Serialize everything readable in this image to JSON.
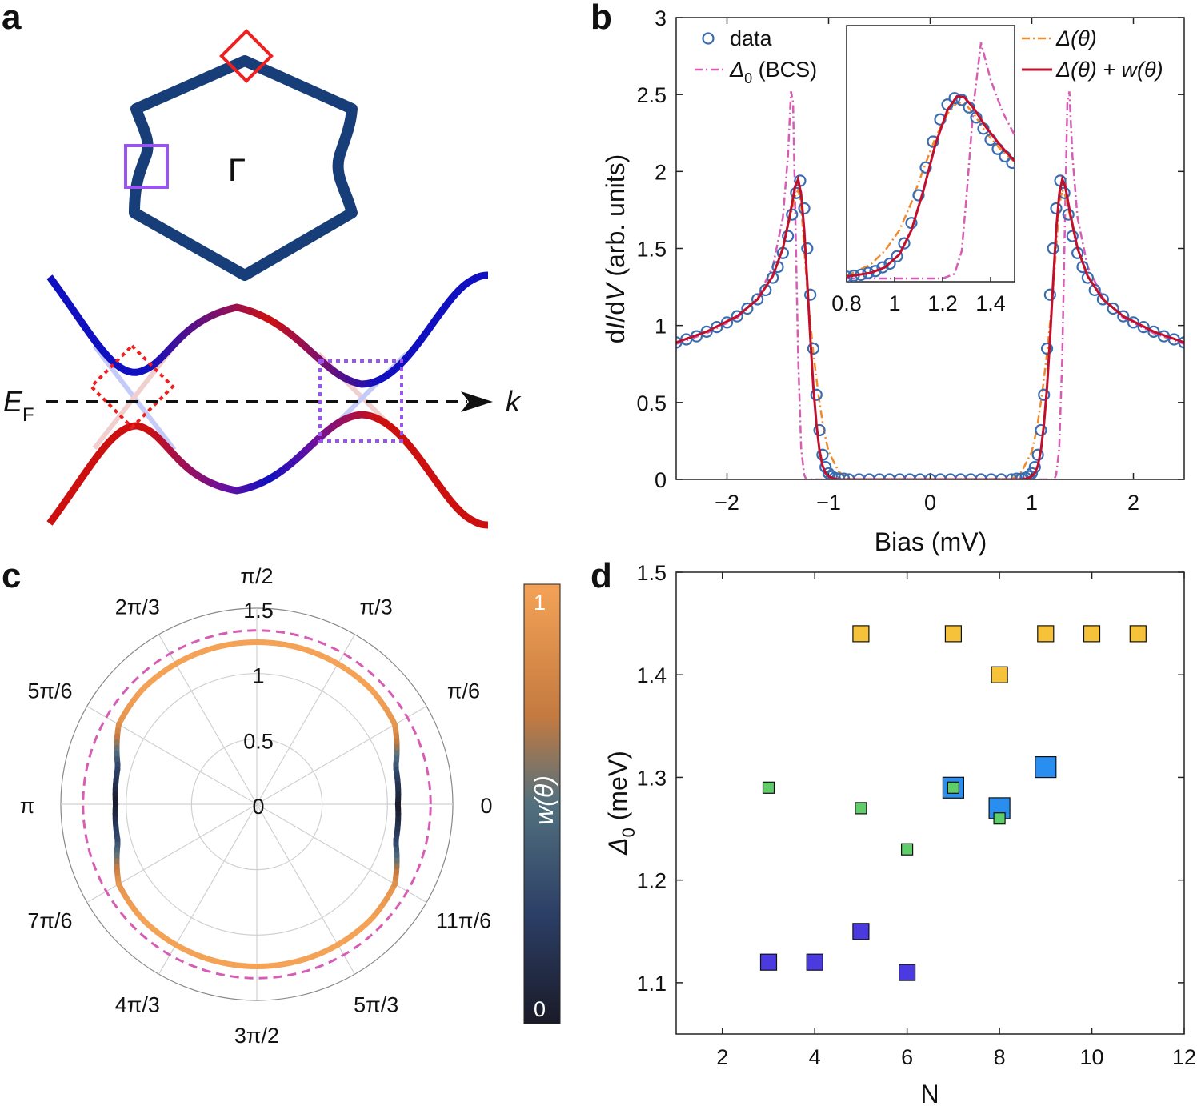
{
  "colors": {
    "data_marker": "#3a6db0",
    "bcs": "#d65cb4",
    "delta_theta": "#f08a2c",
    "fit": "#c0102e",
    "band_blue": "#1010c0",
    "band_red": "#cc1010",
    "hexagon": "#173e78",
    "red_box": "#ee2020",
    "purple_box": "#9a55f0",
    "sq_yellow": "#f6c23a",
    "sq_lightblue": "#2a8ef0",
    "sq_blue": "#4a3ae0",
    "sq_green": "#5fce6a"
  },
  "panel_a": {
    "letter": "a",
    "gamma_label": "Γ",
    "ef_label_main": "E",
    "ef_label_sub": "F",
    "k_label": "k"
  },
  "panel_b": {
    "letter": "b",
    "xlabel": "Bias (mV)",
    "ylabel": "dI/dV (arb. units)",
    "ylabel_parts": [
      "d",
      "I",
      "/d",
      "V",
      " (arb. units)"
    ],
    "legend": {
      "data": "data",
      "bcs_symbol": "Δ",
      "bcs_sub": "0",
      "bcs_rest": " (BCS)",
      "delta_theta": "Δ(θ)",
      "fit": "Δ(θ) + w(θ)"
    }
  },
  "panel_c": {
    "letter": "c",
    "colorbar_label": "w(θ)",
    "colorbar_ticks": [
      "1",
      "0"
    ],
    "angle_labels": [
      "0",
      "π/6",
      "π/3",
      "π/2",
      "2π/3",
      "5π/6",
      "π",
      "7π/6",
      "4π/3",
      "3π/2",
      "5π/3",
      "11π/6"
    ],
    "radial_labels": [
      "0",
      "0.5",
      "1",
      "1.5"
    ]
  },
  "panel_d": {
    "letter": "d",
    "xlabel": "N",
    "ylabel_symbol": "Δ",
    "ylabel_sub": "0",
    "ylabel_rest": " (meV)"
  },
  "chart_data": [
    {
      "type": "line",
      "title": "",
      "xlabel": "Bias (mV)",
      "ylabel": "dI/dV (arb. units)",
      "xlim": [
        -2.5,
        2.5
      ],
      "ylim": [
        0,
        3
      ],
      "xticks": [
        -2,
        -1,
        0,
        1,
        2
      ],
      "yticks": [
        0,
        0.5,
        1,
        1.5,
        2,
        2.5,
        3
      ],
      "series": [
        {
          "name": "data",
          "style": "circles",
          "x": [
            -2.5,
            -2.4,
            -2.3,
            -2.2,
            -2.1,
            -2.0,
            -1.9,
            -1.8,
            -1.7,
            -1.62,
            -1.55,
            -1.5,
            -1.45,
            -1.4,
            -1.36,
            -1.32,
            -1.28,
            -1.24,
            -1.21,
            -1.18,
            -1.15,
            -1.12,
            -1.09,
            -1.06,
            -1.03,
            -1.0,
            -0.97,
            -0.94,
            -0.9,
            -0.85,
            -0.8,
            -0.7,
            -0.6,
            -0.5,
            -0.4,
            -0.3,
            -0.2,
            -0.1,
            0.0,
            0.1,
            0.2,
            0.3,
            0.4,
            0.5,
            0.6,
            0.7,
            0.8,
            0.85,
            0.9,
            0.94,
            0.97,
            1.0,
            1.03,
            1.06,
            1.09,
            1.12,
            1.15,
            1.18,
            1.21,
            1.24,
            1.28,
            1.32,
            1.36,
            1.4,
            1.45,
            1.5,
            1.55,
            1.62,
            1.7,
            1.8,
            1.9,
            2.0,
            2.1,
            2.2,
            2.3,
            2.4,
            2.5
          ],
          "y": [
            0.89,
            0.91,
            0.93,
            0.96,
            0.99,
            1.02,
            1.06,
            1.11,
            1.17,
            1.23,
            1.31,
            1.38,
            1.47,
            1.58,
            1.72,
            1.86,
            1.94,
            1.76,
            1.5,
            1.2,
            0.85,
            0.55,
            0.32,
            0.16,
            0.08,
            0.04,
            0.02,
            0.01,
            0.005,
            0.005,
            0.0,
            0.0,
            0.0,
            0.0,
            0.0,
            0.0,
            0.0,
            0.0,
            0.0,
            0.0,
            0.0,
            0.0,
            0.0,
            0.0,
            0.0,
            0.0,
            0.0,
            0.005,
            0.005,
            0.01,
            0.02,
            0.04,
            0.08,
            0.16,
            0.32,
            0.55,
            0.85,
            1.2,
            1.5,
            1.76,
            1.94,
            1.86,
            1.72,
            1.58,
            1.47,
            1.38,
            1.31,
            1.23,
            1.17,
            1.11,
            1.06,
            1.02,
            0.99,
            0.96,
            0.93,
            0.91,
            0.89
          ]
        },
        {
          "name": "Δ0 (BCS)",
          "style": "dashdot",
          "x": [
            -2.5,
            -2.2,
            -1.9,
            -1.7,
            -1.55,
            -1.45,
            -1.4,
            -1.37,
            -1.35,
            -1.33,
            -1.3,
            -1.27,
            -1.24,
            -1.22,
            -1.2,
            -0.8,
            0.0,
            0.8,
            1.2,
            1.22,
            1.24,
            1.27,
            1.3,
            1.33,
            1.35,
            1.37,
            1.4,
            1.45,
            1.55,
            1.7,
            1.9,
            2.2,
            2.5
          ],
          "y": [
            0.88,
            0.95,
            1.05,
            1.18,
            1.38,
            1.7,
            2.1,
            2.52,
            2.45,
            1.8,
            0.8,
            0.2,
            0.03,
            0.0,
            0.0,
            0.0,
            0.0,
            0.0,
            0.0,
            0.0,
            0.03,
            0.2,
            0.8,
            1.8,
            2.45,
            2.52,
            2.1,
            1.7,
            1.38,
            1.18,
            1.05,
            0.95,
            0.88
          ]
        },
        {
          "name": "Δ(θ)",
          "style": "dashdot",
          "x": [
            -2.5,
            -2.2,
            -1.9,
            -1.7,
            -1.55,
            -1.45,
            -1.38,
            -1.33,
            -1.3,
            -1.27,
            -1.24,
            -1.2,
            -1.15,
            -1.1,
            -1.05,
            -1.0,
            -0.9,
            -0.8,
            0.0,
            0.8,
            0.9,
            1.0,
            1.05,
            1.1,
            1.15,
            1.2,
            1.24,
            1.27,
            1.3,
            1.33,
            1.38,
            1.45,
            1.55,
            1.7,
            1.9,
            2.2,
            2.5
          ],
          "y": [
            0.89,
            0.96,
            1.06,
            1.17,
            1.32,
            1.5,
            1.7,
            1.84,
            1.88,
            1.78,
            1.5,
            1.15,
            0.82,
            0.55,
            0.33,
            0.18,
            0.05,
            0.0,
            0.0,
            0.0,
            0.05,
            0.18,
            0.33,
            0.55,
            0.82,
            1.15,
            1.5,
            1.78,
            1.88,
            1.84,
            1.7,
            1.5,
            1.32,
            1.17,
            1.06,
            0.96,
            0.89
          ]
        },
        {
          "name": "Δ(θ) + w(θ)",
          "style": "solid",
          "x": [
            -2.5,
            -2.2,
            -1.9,
            -1.7,
            -1.55,
            -1.45,
            -1.38,
            -1.33,
            -1.3,
            -1.27,
            -1.24,
            -1.21,
            -1.18,
            -1.15,
            -1.12,
            -1.09,
            -1.06,
            -1.03,
            -1.0,
            -0.95,
            -0.9,
            -0.8,
            0.0,
            0.8,
            0.9,
            0.95,
            1.0,
            1.03,
            1.06,
            1.09,
            1.12,
            1.15,
            1.18,
            1.21,
            1.24,
            1.27,
            1.3,
            1.33,
            1.38,
            1.45,
            1.55,
            1.7,
            1.9,
            2.2,
            2.5
          ],
          "y": [
            0.89,
            0.96,
            1.06,
            1.17,
            1.32,
            1.5,
            1.72,
            1.9,
            1.95,
            1.85,
            1.62,
            1.28,
            0.92,
            0.6,
            0.36,
            0.19,
            0.09,
            0.04,
            0.02,
            0.005,
            0.0,
            0.0,
            0.0,
            0.0,
            0.0,
            0.005,
            0.02,
            0.04,
            0.09,
            0.19,
            0.36,
            0.6,
            0.92,
            1.28,
            1.62,
            1.85,
            1.95,
            1.9,
            1.72,
            1.5,
            1.32,
            1.17,
            1.06,
            0.96,
            0.89
          ]
        }
      ],
      "inset": {
        "xlim": [
          0.8,
          1.5
        ],
        "xticks": [
          0.8,
          1,
          1.2,
          1.4
        ],
        "ylim": [
          0,
          2.7
        ],
        "data": {
          "x": [
            0.8,
            0.83,
            0.86,
            0.89,
            0.92,
            0.95,
            0.98,
            1.01,
            1.04,
            1.07,
            1.1,
            1.13,
            1.16,
            1.19,
            1.22,
            1.25,
            1.28,
            1.31,
            1.34,
            1.37,
            1.4,
            1.43,
            1.46,
            1.49
          ],
          "y": [
            0.02,
            0.03,
            0.04,
            0.06,
            0.08,
            0.12,
            0.16,
            0.24,
            0.38,
            0.6,
            0.9,
            1.2,
            1.48,
            1.72,
            1.88,
            1.95,
            1.93,
            1.85,
            1.74,
            1.62,
            1.5,
            1.4,
            1.32,
            1.25
          ]
        },
        "bcs": {
          "x": [
            0.8,
            1.0,
            1.2,
            1.25,
            1.28,
            1.3,
            1.33,
            1.36,
            1.4,
            1.45,
            1.5
          ],
          "y": [
            0.0,
            0.0,
            0.0,
            0.05,
            0.3,
            0.9,
            1.9,
            2.55,
            2.15,
            1.8,
            1.55
          ]
        },
        "delta_theta": {
          "x": [
            0.8,
            0.9,
            0.96,
            1.02,
            1.07,
            1.12,
            1.17,
            1.22,
            1.26,
            1.29,
            1.33,
            1.38,
            1.44,
            1.5
          ],
          "y": [
            0.03,
            0.15,
            0.3,
            0.52,
            0.82,
            1.18,
            1.52,
            1.78,
            1.9,
            1.9,
            1.78,
            1.58,
            1.4,
            1.26
          ]
        },
        "fit": {
          "x": [
            0.8,
            0.9,
            0.96,
            1.02,
            1.07,
            1.12,
            1.17,
            1.22,
            1.26,
            1.29,
            1.33,
            1.38,
            1.44,
            1.5
          ],
          "y": [
            0.02,
            0.06,
            0.12,
            0.26,
            0.52,
            0.95,
            1.45,
            1.82,
            1.97,
            1.96,
            1.84,
            1.64,
            1.44,
            1.27
          ]
        }
      }
    },
    {
      "type": "polar",
      "radial_ticks": [
        0,
        0.5,
        1,
        1.5
      ],
      "rmax": 1.5,
      "series": [
        {
          "name": "Δ0 (BCS) circle",
          "style": "dashed",
          "r_const": 1.33
        },
        {
          "name": "gap Δ(θ) colored by w(θ)",
          "style": "solid",
          "theta_deg": [
            0,
            15,
            30,
            45,
            60,
            75,
            90,
            105,
            120,
            135,
            150,
            165,
            180,
            195,
            210,
            225,
            240,
            255,
            270,
            285,
            300,
            315,
            330,
            345,
            360
          ],
          "r": [
            1.08,
            1.1,
            1.22,
            1.24,
            1.24,
            1.24,
            1.24,
            1.24,
            1.24,
            1.24,
            1.22,
            1.1,
            1.08,
            1.1,
            1.22,
            1.24,
            1.24,
            1.24,
            1.24,
            1.24,
            1.24,
            1.24,
            1.22,
            1.1,
            1.08
          ],
          "w": [
            0.0,
            0.3,
            0.9,
            1.0,
            1.0,
            1.0,
            1.0,
            1.0,
            1.0,
            1.0,
            0.9,
            0.3,
            0.0,
            0.3,
            0.9,
            1.0,
            1.0,
            1.0,
            1.0,
            1.0,
            1.0,
            1.0,
            0.9,
            0.3,
            0.0
          ]
        }
      ],
      "colorbar": {
        "label": "w(θ)",
        "range": [
          0,
          1
        ]
      }
    },
    {
      "type": "scatter",
      "xlabel": "N",
      "ylabel": "Δ0 (meV)",
      "xlim": [
        1,
        12
      ],
      "ylim": [
        1.05,
        1.5
      ],
      "xticks": [
        2,
        4,
        6,
        8,
        10,
        12
      ],
      "yticks": [
        1.1,
        1.2,
        1.3,
        1.4,
        1.5
      ],
      "series": [
        {
          "name": "yellow",
          "marker_size": "medium",
          "x": [
            5,
            7,
            8,
            9,
            10,
            11
          ],
          "y": [
            1.44,
            1.44,
            1.4,
            1.44,
            1.44,
            1.44
          ]
        },
        {
          "name": "light blue",
          "marker_size": "large",
          "x": [
            7,
            8,
            9
          ],
          "y": [
            1.29,
            1.27,
            1.31
          ]
        },
        {
          "name": "blue",
          "marker_size": "medium",
          "x": [
            3,
            4,
            5,
            6
          ],
          "y": [
            1.12,
            1.12,
            1.15,
            1.11
          ]
        },
        {
          "name": "green",
          "marker_size": "small",
          "x": [
            3,
            5,
            6,
            7,
            8
          ],
          "y": [
            1.29,
            1.27,
            1.23,
            1.29,
            1.26
          ]
        }
      ]
    }
  ]
}
